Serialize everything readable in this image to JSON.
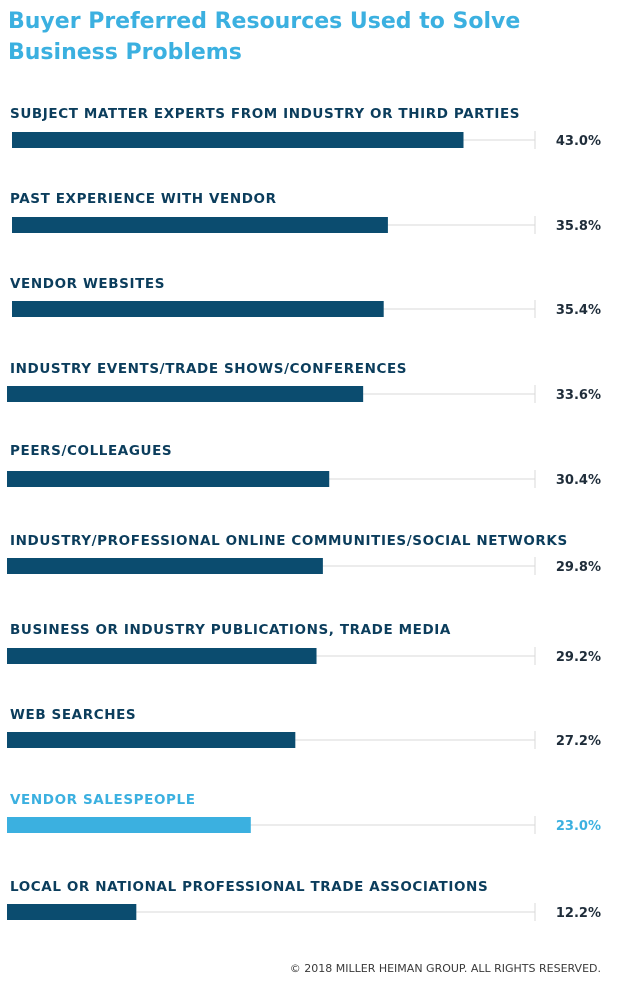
{
  "title": "Buyer Preferred Resources Used to Solve Business Problems",
  "footer": "© 2018 MILLER HEIMAN GROUP. ALL RIGHTS RESERVED.",
  "colors": {
    "bar": "#0b4c6f",
    "highlight": "#3bb0e0",
    "track": "#d9d9d9",
    "label": "#0b3d5c"
  },
  "chart_data": {
    "type": "bar",
    "orientation": "horizontal",
    "title": "Buyer Preferred Resources Used to Solve Business Problems",
    "xlim": [
      0,
      50
    ],
    "highlight": "VENDOR SALESPEOPLE",
    "categories": [
      "SUBJECT MATTER EXPERTS FROM INDUSTRY OR THIRD PARTIES",
      "PAST EXPERIENCE WITH VENDOR",
      "VENDOR WEBSITES",
      "INDUSTRY EVENTS/TRADE SHOWS/CONFERENCES",
      "PEERS/COLLEAGUES",
      "INDUSTRY/PROFESSIONAL ONLINE COMMUNITIES/SOCIAL NETWORKS",
      "BUSINESS OR INDUSTRY PUBLICATIONS, TRADE MEDIA",
      "WEB SEARCHES",
      "VENDOR SALESPEOPLE",
      "LOCAL OR NATIONAL PROFESSIONAL TRADE ASSOCIATIONS"
    ],
    "values": [
      43.0,
      35.8,
      35.4,
      33.6,
      30.4,
      29.8,
      29.2,
      27.2,
      23.0,
      12.2
    ],
    "value_labels": [
      "43.0%",
      "35.8%",
      "35.4%",
      "33.6%",
      "30.4%",
      "29.8%",
      "29.2%",
      "27.2%",
      "23.0%",
      "12.2%"
    ]
  }
}
